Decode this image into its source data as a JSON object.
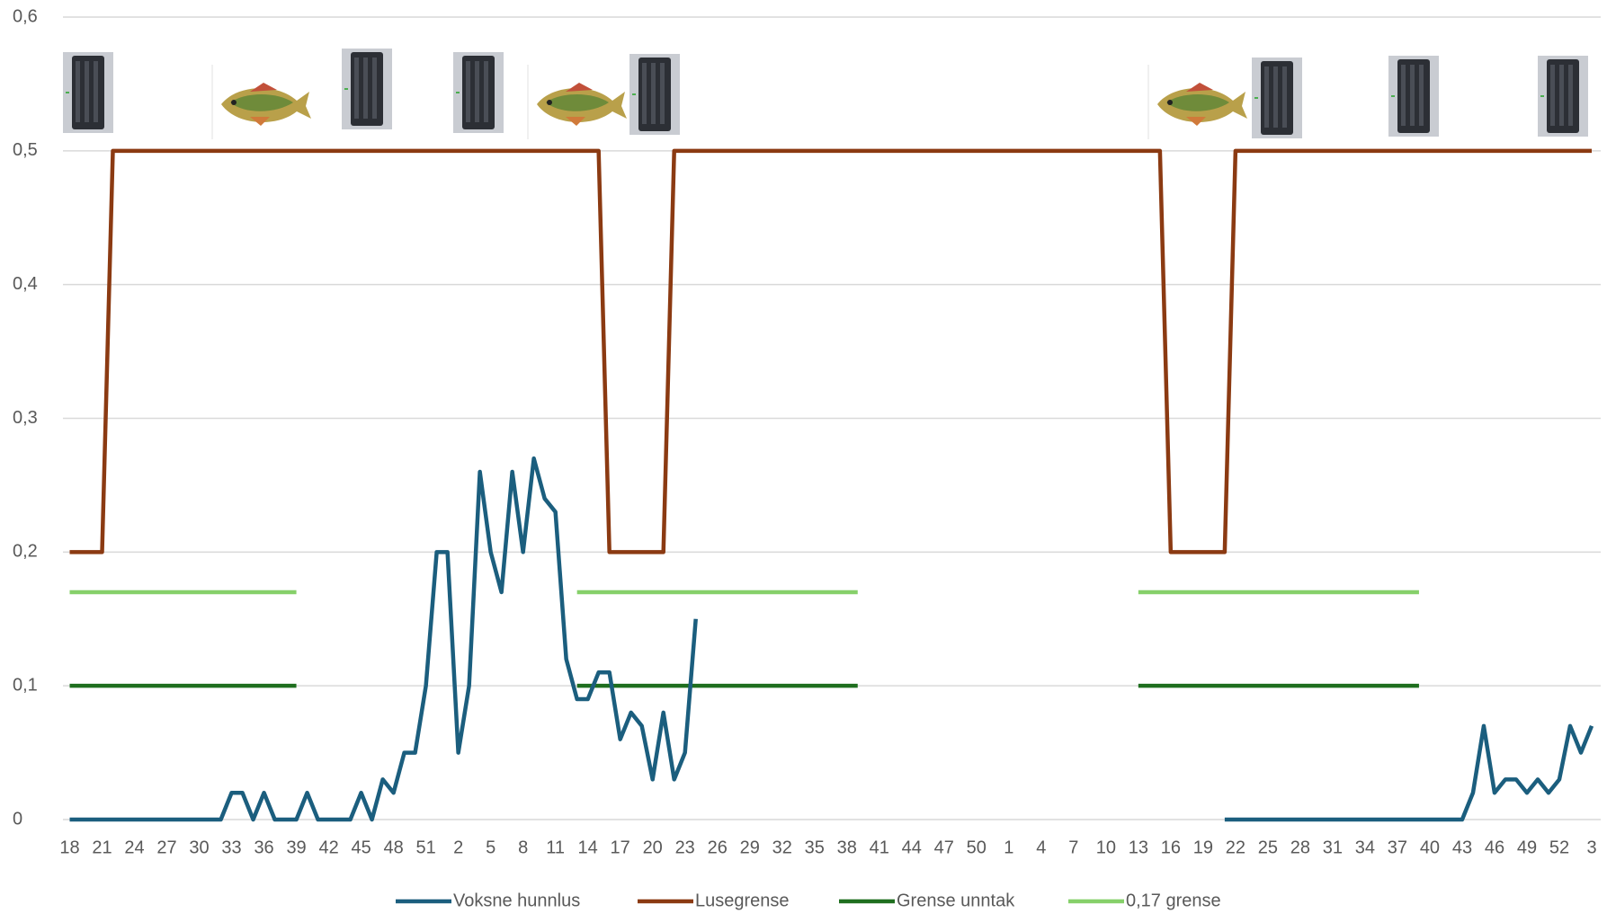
{
  "chart_data": {
    "type": "line",
    "categories": [
      "18",
      null,
      null,
      "21",
      null,
      null,
      "24",
      null,
      null,
      "27",
      null,
      null,
      "30",
      null,
      null,
      "33",
      null,
      null,
      "36",
      null,
      null,
      "39",
      null,
      null,
      "42",
      null,
      null,
      "45",
      null,
      null,
      "48",
      null,
      null,
      "51",
      null,
      null,
      "2",
      null,
      null,
      "5",
      null,
      null,
      "8",
      null,
      null,
      "11",
      null,
      null,
      "14",
      null,
      null,
      "17",
      null,
      null,
      "20",
      null,
      null,
      "23",
      null,
      null,
      "26",
      null,
      null,
      "29",
      null,
      null,
      "32",
      null,
      null,
      "35",
      null,
      null,
      "38",
      null,
      null,
      "41",
      null,
      null,
      "44",
      null,
      null,
      "47",
      null,
      null,
      "50",
      null,
      null,
      "1",
      null,
      null,
      "4",
      null,
      null,
      "7",
      null,
      null,
      "10",
      null,
      null,
      "13",
      null,
      null,
      "16",
      null,
      null,
      "19",
      null,
      null,
      "22",
      null,
      null,
      "25",
      null,
      null,
      "28",
      null,
      null,
      "31",
      null,
      null,
      "34",
      null,
      null,
      "37",
      null,
      null,
      "40",
      null,
      null,
      "43",
      null,
      null,
      "46",
      null,
      null,
      "49",
      null,
      null,
      "52",
      null,
      null,
      "3"
    ],
    "series": [
      {
        "name": "Voksne hunnlus",
        "color": "#1b5e7e",
        "values": [
          0,
          0,
          0,
          0,
          0,
          0,
          0,
          0,
          0,
          0,
          0,
          0,
          0,
          0,
          0,
          0.02,
          0.02,
          0,
          0.02,
          0,
          0,
          0,
          0.02,
          0,
          0,
          0,
          0,
          0.02,
          0,
          0.03,
          0.02,
          0.05,
          0.05,
          0.1,
          0.2,
          0.2,
          0.05,
          0.1,
          0.26,
          0.2,
          0.17,
          0.26,
          0.2,
          0.27,
          0.24,
          0.23,
          0.12,
          0.09,
          0.09,
          0.11,
          0.11,
          0.06,
          0.08,
          0.07,
          0.03,
          0.08,
          0.03,
          0.05,
          0.15,
          null,
          null,
          null,
          null,
          null,
          null,
          null,
          null,
          null,
          null,
          null,
          null,
          null,
          null,
          null,
          null,
          null,
          null,
          null,
          null,
          null,
          null,
          null,
          null,
          null,
          null,
          null,
          null,
          null,
          null,
          null,
          null,
          null,
          null,
          null,
          null,
          null,
          null,
          null,
          null,
          null,
          null,
          null,
          null,
          null,
          null,
          null,
          null,
          0,
          0,
          0,
          0,
          0,
          0,
          0,
          0,
          0,
          0,
          0,
          0,
          0,
          0,
          0,
          0,
          0,
          0,
          0,
          0,
          0,
          0,
          0,
          0.02,
          0.07,
          0.02,
          0.03,
          0.03,
          0.02,
          0.03,
          0.02,
          0.03,
          0.07,
          0.05,
          0.07
        ]
      },
      {
        "name": "Lusegrense",
        "color": "#8b3a12",
        "values": [
          0.2,
          0.2,
          0.2,
          0.2,
          0.5,
          0.5,
          0.5,
          0.5,
          0.5,
          0.5,
          0.5,
          0.5,
          0.5,
          0.5,
          0.5,
          0.5,
          0.5,
          0.5,
          0.5,
          0.5,
          0.5,
          0.5,
          0.5,
          0.5,
          0.5,
          0.5,
          0.5,
          0.5,
          0.5,
          0.5,
          0.5,
          0.5,
          0.5,
          0.5,
          0.5,
          0.5,
          0.5,
          0.5,
          0.5,
          0.5,
          0.5,
          0.5,
          0.5,
          0.5,
          0.5,
          0.5,
          0.5,
          0.5,
          0.5,
          0.5,
          0.2,
          0.2,
          0.2,
          0.2,
          0.2,
          0.2,
          0.5,
          0.5,
          0.5,
          0.5,
          0.5,
          0.5,
          0.5,
          0.5,
          0.5,
          0.5,
          0.5,
          0.5,
          0.5,
          0.5,
          0.5,
          0.5,
          0.5,
          0.5,
          0.5,
          0.5,
          0.5,
          0.5,
          0.5,
          0.5,
          0.5,
          0.5,
          0.5,
          0.5,
          0.5,
          0.5,
          0.5,
          0.5,
          0.5,
          0.5,
          0.5,
          0.5,
          0.5,
          0.5,
          0.5,
          0.5,
          0.5,
          0.5,
          0.5,
          0.5,
          0.5,
          0.5,
          0.2,
          0.2,
          0.2,
          0.2,
          0.2,
          0.2,
          0.5,
          0.5,
          0.5,
          0.5,
          0.5,
          0.5,
          0.5,
          0.5,
          0.5,
          0.5,
          0.5,
          0.5,
          0.5,
          0.5,
          0.5,
          0.5,
          0.5,
          0.5,
          0.5,
          0.5,
          0.5,
          0.5,
          0.5,
          0.5,
          0.5,
          0.5,
          0.5,
          0.5,
          0.5,
          0.5,
          0.5,
          0.5,
          0.5,
          0.5
        ]
      },
      {
        "name": "Grense unntak",
        "color": "#1f6f1f",
        "values": [
          0.1,
          0.1,
          0.1,
          0.1,
          0.1,
          0.1,
          0.1,
          0.1,
          0.1,
          0.1,
          0.1,
          0.1,
          0.1,
          0.1,
          0.1,
          0.1,
          0.1,
          0.1,
          0.1,
          0.1,
          0.1,
          0.1,
          null,
          null,
          null,
          null,
          null,
          null,
          null,
          null,
          null,
          null,
          null,
          null,
          null,
          null,
          null,
          null,
          null,
          null,
          null,
          null,
          null,
          null,
          null,
          null,
          null,
          0.1,
          0.1,
          0.1,
          0.1,
          0.1,
          0.1,
          0.1,
          0.1,
          0.1,
          0.1,
          0.1,
          0.1,
          0.1,
          0.1,
          0.1,
          0.1,
          0.1,
          0.1,
          0.1,
          0.1,
          0.1,
          0.1,
          0.1,
          0.1,
          0.1,
          0.1,
          0.1,
          null,
          null,
          null,
          null,
          null,
          null,
          null,
          null,
          null,
          null,
          null,
          null,
          null,
          null,
          null,
          null,
          null,
          null,
          null,
          null,
          null,
          null,
          null,
          null,
          null,
          0.1,
          0.1,
          0.1,
          0.1,
          0.1,
          0.1,
          0.1,
          0.1,
          0.1,
          0.1,
          0.1,
          0.1,
          0.1,
          0.1,
          0.1,
          0.1,
          0.1,
          0.1,
          0.1,
          0.1,
          0.1,
          0.1,
          0.1,
          0.1,
          0.1,
          0.1,
          0.1,
          null,
          null,
          null,
          null,
          null,
          null,
          null,
          null,
          null,
          null,
          null,
          null,
          null,
          null,
          null,
          null
        ]
      },
      {
        "name": "0,17 grense",
        "color": "#86d06a",
        "values": [
          0.17,
          0.17,
          0.17,
          0.17,
          0.17,
          0.17,
          0.17,
          0.17,
          0.17,
          0.17,
          0.17,
          0.17,
          0.17,
          0.17,
          0.17,
          0.17,
          0.17,
          0.17,
          0.17,
          0.17,
          0.17,
          0.17,
          null,
          null,
          null,
          null,
          null,
          null,
          null,
          null,
          null,
          null,
          null,
          null,
          null,
          null,
          null,
          null,
          null,
          null,
          null,
          null,
          null,
          null,
          null,
          null,
          null,
          0.17,
          0.17,
          0.17,
          0.17,
          0.17,
          0.17,
          0.17,
          0.17,
          0.17,
          0.17,
          0.17,
          0.17,
          0.17,
          0.17,
          0.17,
          0.17,
          0.17,
          0.17,
          0.17,
          0.17,
          0.17,
          0.17,
          0.17,
          0.17,
          0.17,
          0.17,
          0.17,
          null,
          null,
          null,
          null,
          null,
          null,
          null,
          null,
          null,
          null,
          null,
          null,
          null,
          null,
          null,
          null,
          null,
          null,
          null,
          null,
          null,
          null,
          null,
          null,
          null,
          0.17,
          0.17,
          0.17,
          0.17,
          0.17,
          0.17,
          0.17,
          0.17,
          0.17,
          0.17,
          0.17,
          0.17,
          0.17,
          0.17,
          0.17,
          0.17,
          0.17,
          0.17,
          0.17,
          0.17,
          0.17,
          0.17,
          0.17,
          0.17,
          0.17,
          0.17,
          0.17,
          null,
          null,
          null,
          null,
          null,
          null,
          null,
          null,
          null,
          null,
          null,
          null,
          null,
          null,
          null,
          null
        ]
      }
    ],
    "ylim": [
      0,
      0.6
    ],
    "yticks": [
      0,
      {
        "value": 0.1,
        "label": "0,1"
      },
      {
        "value": 0.2,
        "label": "0,2"
      },
      {
        "value": 0.3,
        "label": "0,3"
      },
      {
        "value": 0.4,
        "label": "0,4"
      },
      {
        "value": 0.5,
        "label": "0,5"
      },
      {
        "value": 0.6,
        "label": "0,6"
      }
    ],
    "grid": true,
    "legend": "bottom"
  }
}
